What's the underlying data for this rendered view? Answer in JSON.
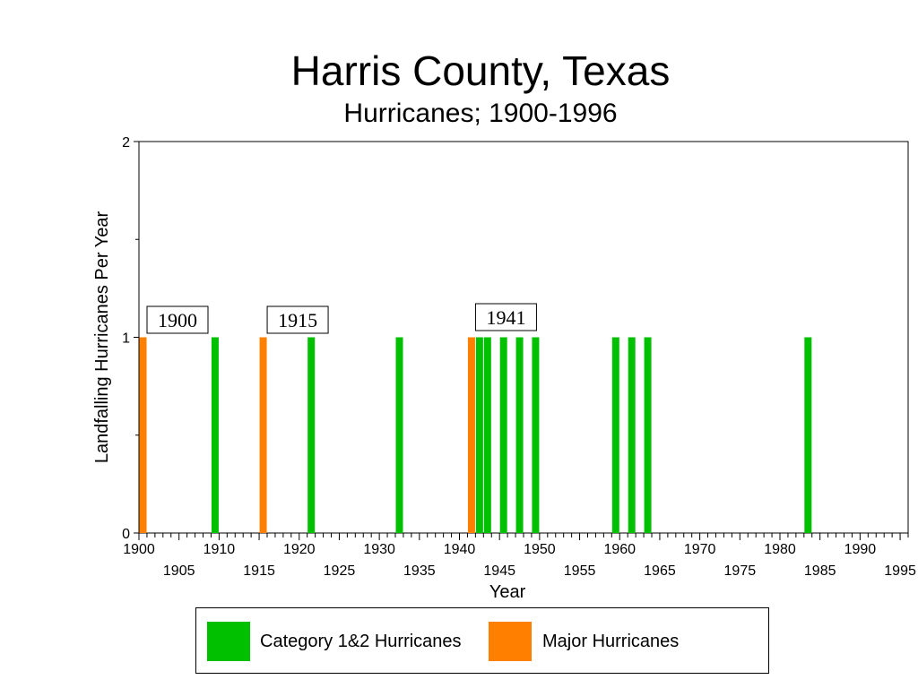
{
  "chart_data": {
    "type": "bar",
    "title": "Harris County, Texas",
    "subtitle": "Hurricanes;  1900-1996",
    "xlabel": "Year",
    "ylabel": "Landfalling Hurricanes Per Year",
    "xlim": [
      1900,
      1996
    ],
    "ylim": [
      0,
      2
    ],
    "y_ticks": [
      "0",
      "1",
      "2"
    ],
    "x_ticks_upper": [
      "1900",
      "1910",
      "1920",
      "1930",
      "1940",
      "1950",
      "1960",
      "1970",
      "1980",
      "1990"
    ],
    "x_ticks_lower": [
      "1905",
      "1915",
      "1925",
      "1935",
      "1945",
      "1955",
      "1965",
      "1975",
      "1985",
      "1995"
    ],
    "grid": false,
    "legend_position": "bottom",
    "series": [
      {
        "name": "Category 1&2 Hurricanes",
        "color": "#00c000",
        "x": [
          1909,
          1921,
          1932,
          1942,
          1943,
          1945,
          1947,
          1949,
          1959,
          1961,
          1963,
          1983
        ],
        "values": [
          1,
          1,
          1,
          1,
          1,
          1,
          1,
          1,
          1,
          1,
          1,
          1
        ]
      },
      {
        "name": "Major Hurricanes",
        "color": "#ff8000",
        "x": [
          1900,
          1915,
          1941
        ],
        "values": [
          1,
          1,
          1
        ]
      }
    ],
    "annotations": [
      {
        "text": "1900",
        "x": 1900
      },
      {
        "text": "1915",
        "x": 1915
      },
      {
        "text": "1941",
        "x": 1941
      }
    ]
  }
}
